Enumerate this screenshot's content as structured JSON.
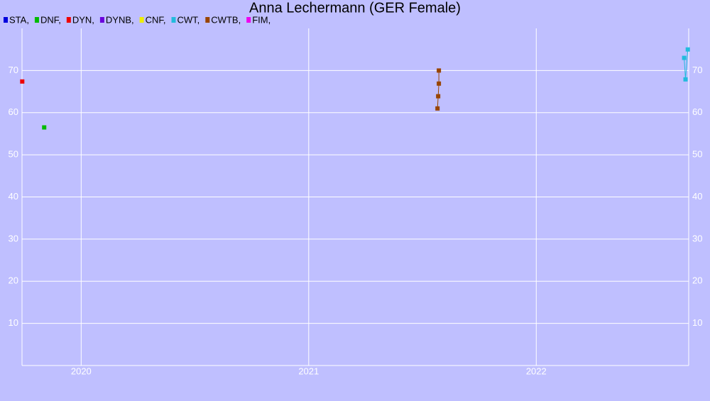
{
  "chart_data": {
    "type": "line",
    "title": "Anna Lechermann (GER Female)",
    "xlim": [
      2019.74,
      2022.67
    ],
    "xticks": [
      2020,
      2021,
      2022
    ],
    "ylim": [
      0,
      80
    ],
    "yticks": [
      10,
      20,
      30,
      40,
      50,
      60,
      70
    ],
    "grid": true,
    "legend": "top-left",
    "series": [
      {
        "name": "STA,",
        "color": "#0000dd",
        "x": [],
        "values": []
      },
      {
        "name": "DNF,",
        "color": "#00bb00",
        "x": [
          2019.8375
        ],
        "values": [
          56.5
        ]
      },
      {
        "name": "DYN,",
        "color": "#ee0000",
        "x": [
          2019.741
        ],
        "values": [
          67.4
        ]
      },
      {
        "name": "DYNB,",
        "color": "#6a00dd",
        "x": [],
        "values": []
      },
      {
        "name": "CNF,",
        "color": "#eeee00",
        "x": [],
        "values": []
      },
      {
        "name": "CWT,",
        "color": "#22bbdd",
        "x": [
          2022.65,
          2022.656,
          2022.666
        ],
        "values": [
          73,
          67.9,
          75
        ]
      },
      {
        "name": "CWTB,",
        "color": "#994400",
        "x": [
          2021.566,
          2021.569,
          2021.572,
          2021.572
        ],
        "values": [
          61,
          63.9,
          66.9,
          70
        ]
      },
      {
        "name": "FIM,",
        "color": "#ee00ee",
        "x": [],
        "values": []
      }
    ]
  }
}
